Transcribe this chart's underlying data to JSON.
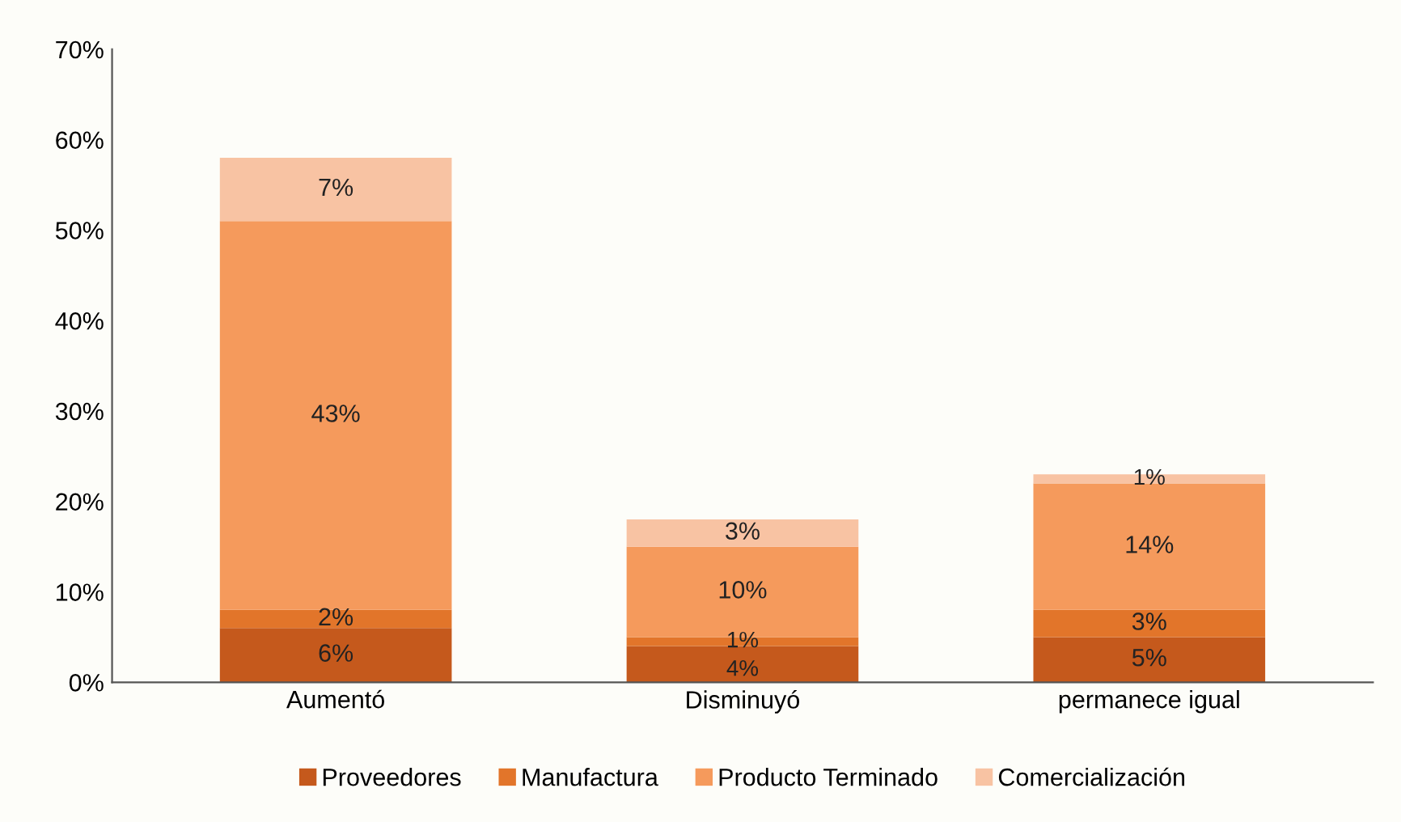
{
  "chart_data": {
    "type": "bar",
    "stacked": true,
    "categories": [
      "Aumentó",
      "Disminuyó",
      "permanece igual"
    ],
    "series": [
      {
        "name": "Proveedores",
        "color": "#c5591c",
        "values": [
          6,
          4,
          5
        ],
        "value_labels": [
          "6%",
          "4%",
          "5%"
        ]
      },
      {
        "name": "Manufactura",
        "color": "#e2752a",
        "values": [
          2,
          1,
          3
        ],
        "value_labels": [
          "2%",
          "1%",
          "3%"
        ]
      },
      {
        "name": "Producto Terminado",
        "color": "#f59a5c",
        "values": [
          43,
          10,
          14
        ],
        "value_labels": [
          "43%",
          "10%",
          "14%"
        ]
      },
      {
        "name": "Comercialización",
        "color": "#f8c3a3",
        "values": [
          7,
          3,
          1
        ],
        "value_labels": [
          "7%",
          "3%",
          "1%"
        ]
      }
    ],
    "ylim": [
      0,
      70
    ],
    "yticks": [
      {
        "value": 0,
        "label": "0%"
      },
      {
        "value": 10,
        "label": "10%"
      },
      {
        "value": 20,
        "label": "20%"
      },
      {
        "value": 30,
        "label": "30%"
      },
      {
        "value": 40,
        "label": "40%"
      },
      {
        "value": 50,
        "label": "50%"
      },
      {
        "value": 60,
        "label": "60%"
      },
      {
        "value": 70,
        "label": "70%"
      }
    ],
    "grid": false,
    "legend": "bottom"
  }
}
